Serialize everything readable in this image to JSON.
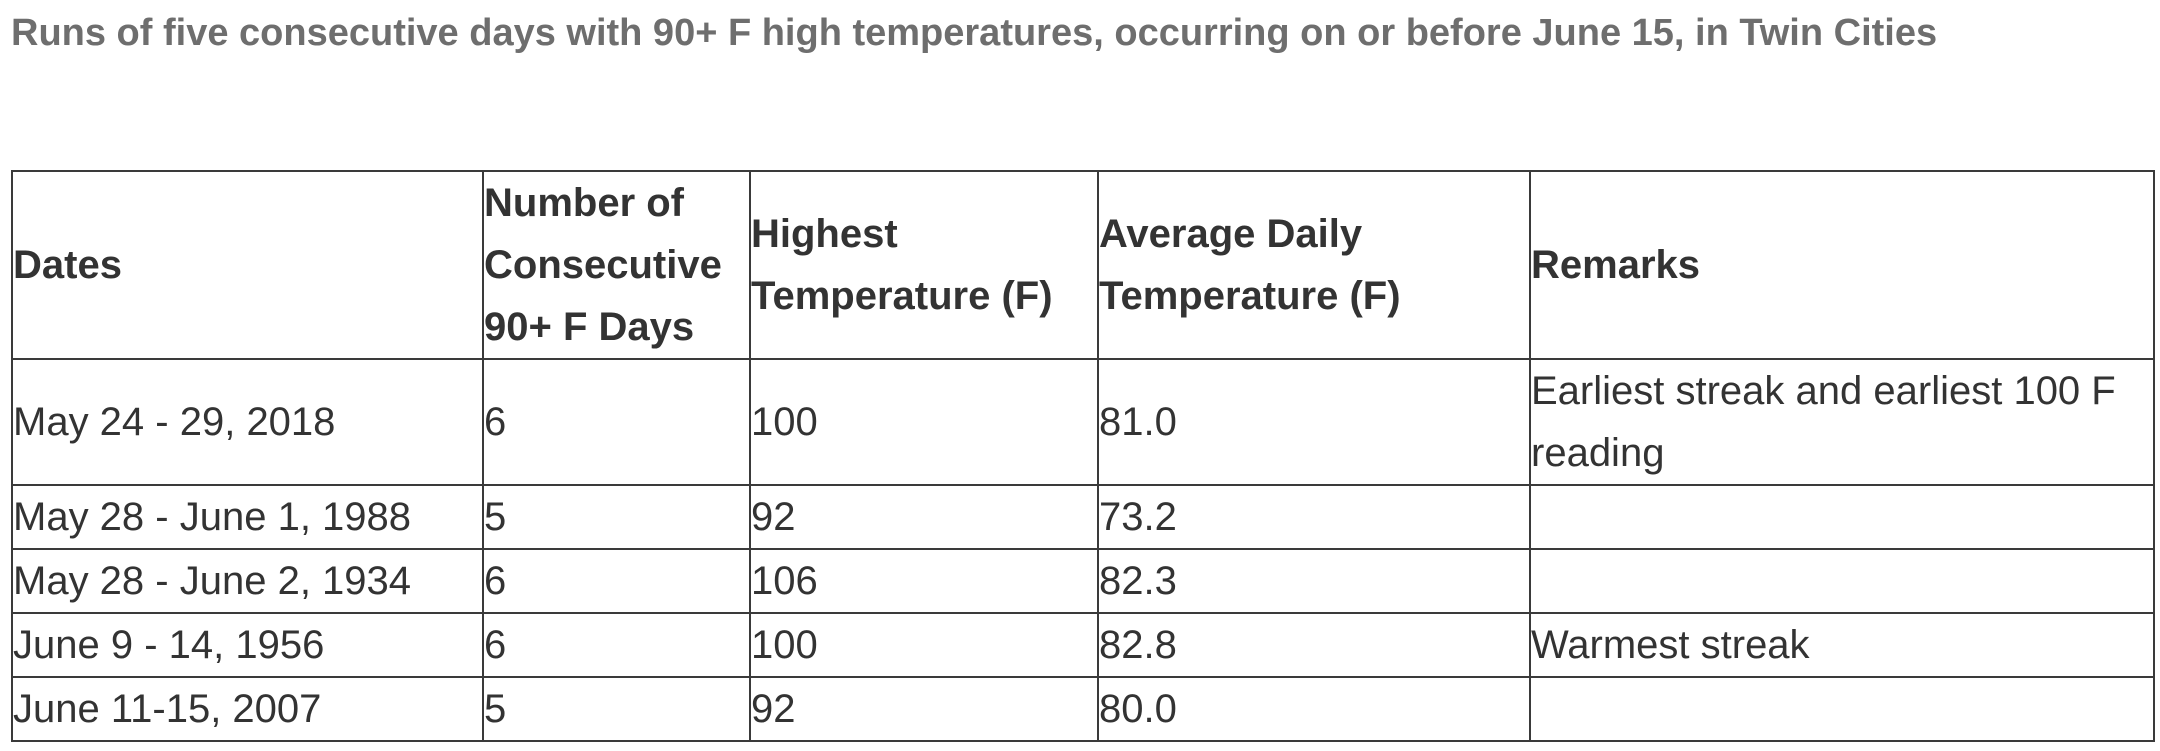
{
  "title": "Runs of five consecutive days with 90+ F high temperatures, occurring on or before June 15, in Twin Cities",
  "table": {
    "header": [
      "Dates",
      "Number of Consecutive 90+ F Days",
      "Highest Temperature (F)",
      "Average Daily Temperature (F)",
      "Remarks"
    ],
    "rows": [
      [
        "May 24 - 29, 2018",
        "6",
        "100",
        "81.0",
        "Earliest streak and earliest 100 F reading"
      ],
      [
        "May 28 - June 1, 1988",
        "5",
        "92",
        "73.2",
        ""
      ],
      [
        "May 28 - June 2, 1934",
        "6",
        "106",
        "82.3",
        ""
      ],
      [
        "June 9 - 14, 1956",
        "6",
        "100",
        "82.8",
        "Warmest streak"
      ],
      [
        "June 11-15, 2007",
        "5",
        "92",
        "80.0",
        ""
      ]
    ]
  }
}
